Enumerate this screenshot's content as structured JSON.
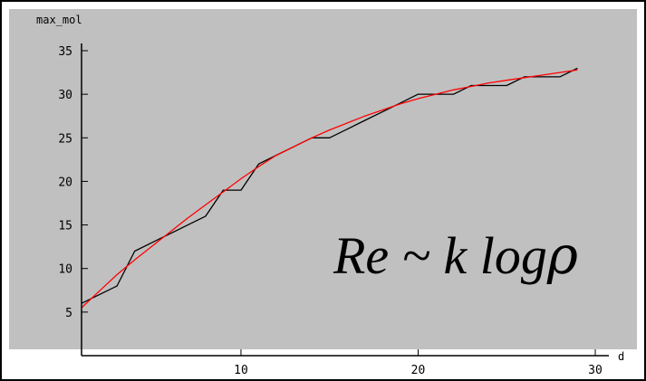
{
  "chart_data": {
    "type": "line",
    "background": "#c0c0c0",
    "ylabel": "max_mol",
    "xlabel": "d",
    "xlim": [
      1,
      30
    ],
    "ylim": [
      0,
      35
    ],
    "xticks": [
      10,
      20,
      30
    ],
    "yticks": [
      5,
      10,
      15,
      20,
      25,
      30,
      35
    ],
    "grid": false,
    "series": [
      {
        "color": "#000000",
        "x": [
          1,
          2,
          3,
          4,
          5,
          6,
          7,
          8,
          9,
          10,
          11,
          12,
          13,
          14,
          15,
          16,
          17,
          18,
          19,
          20,
          21,
          22,
          23,
          24,
          25,
          26,
          27,
          28,
          29
        ],
        "y": [
          6,
          7,
          8,
          12,
          13,
          14,
          15,
          16,
          19,
          19,
          22,
          23,
          24,
          25,
          25,
          26,
          27,
          28,
          29,
          30,
          30,
          30,
          31,
          31,
          31,
          32,
          32,
          32,
          33
        ]
      },
      {
        "color": "#ff0000",
        "x": [
          1,
          2,
          3,
          4,
          5,
          6,
          7,
          8,
          9,
          10,
          11,
          12,
          13,
          14,
          15,
          16,
          17,
          18,
          19,
          20,
          21,
          22,
          23,
          24,
          25,
          26,
          27,
          28,
          29
        ],
        "y": [
          5.5,
          7.4,
          9.3,
          11.0,
          12.6,
          14.2,
          15.8,
          17.3,
          18.8,
          20.3,
          21.7,
          23.0,
          24.0,
          25.0,
          25.9,
          26.7,
          27.5,
          28.2,
          28.9,
          29.5,
          30.0,
          30.5,
          30.9,
          31.3,
          31.6,
          31.9,
          32.2,
          32.5,
          32.8
        ]
      }
    ]
  },
  "annotation": {
    "formula_main": "Re ~ k log",
    "formula_symbol": "ρ"
  }
}
